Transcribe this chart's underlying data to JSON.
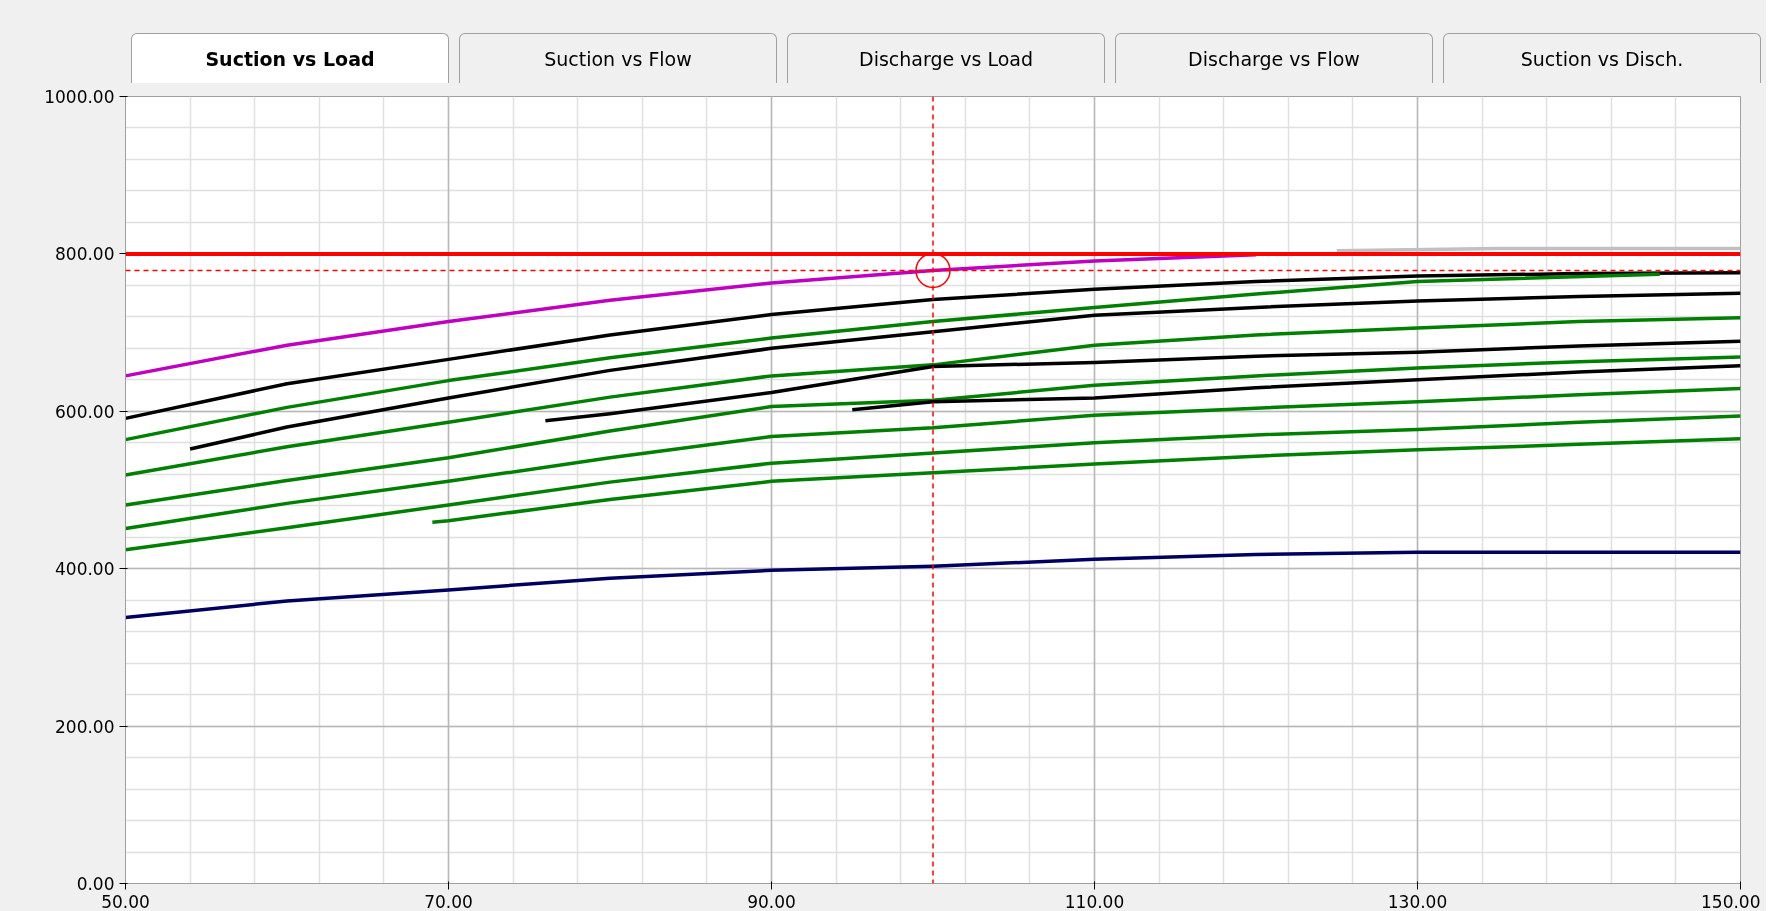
{
  "chart_data": {
    "type": "line",
    "annotations": [
      "Suction vs Load",
      "Suction vs Flow",
      "Discharge vs Load",
      "Discharge vs Flow",
      "Suction vs Disch."
    ],
    "xlim": [
      50,
      150
    ],
    "ylim": [
      0,
      1000
    ],
    "xticks": [
      {
        "value": 50,
        "label": "50.00"
      },
      {
        "value": 54,
        "label": null
      },
      {
        "value": 58,
        "label": null
      },
      {
        "value": 62,
        "label": null
      },
      {
        "value": 66,
        "label": null
      },
      {
        "value": 70,
        "label": "70.00"
      },
      {
        "value": 74,
        "label": null
      },
      {
        "value": 78,
        "label": null
      },
      {
        "value": 82,
        "label": null
      },
      {
        "value": 86,
        "label": null
      },
      {
        "value": 90,
        "label": "90.00"
      },
      {
        "value": 94,
        "label": null
      },
      {
        "value": 98,
        "label": null
      },
      {
        "value": 102,
        "label": null
      },
      {
        "value": 106,
        "label": null
      },
      {
        "value": 110,
        "label": "110.00"
      },
      {
        "value": 114,
        "label": null
      },
      {
        "value": 118,
        "label": null
      },
      {
        "value": 122,
        "label": null
      },
      {
        "value": 126,
        "label": null
      },
      {
        "value": 130,
        "label": "130.00"
      },
      {
        "value": 134,
        "label": null
      },
      {
        "value": 138,
        "label": null
      },
      {
        "value": 142,
        "label": null
      },
      {
        "value": 146,
        "label": null
      },
      {
        "value": 150,
        "label": "150.00"
      }
    ],
    "yticks": [
      {
        "value": 0,
        "label": "0.00"
      },
      {
        "value": 40,
        "label": null
      },
      {
        "value": 80,
        "label": null
      },
      {
        "value": 120,
        "label": null
      },
      {
        "value": 160,
        "label": null
      },
      {
        "value": 200,
        "label": "200.00"
      },
      {
        "value": 240,
        "label": null
      },
      {
        "value": 280,
        "label": null
      },
      {
        "value": 320,
        "label": null
      },
      {
        "value": 360,
        "label": null
      },
      {
        "value": 400,
        "label": "400.00"
      },
      {
        "value": 440,
        "label": null
      },
      {
        "value": 480,
        "label": null
      },
      {
        "value": 520,
        "label": null
      },
      {
        "value": 560,
        "label": null
      },
      {
        "value": 600,
        "label": "600.00"
      },
      {
        "value": 640,
        "label": null
      },
      {
        "value": 680,
        "label": null
      },
      {
        "value": 720,
        "label": null
      },
      {
        "value": 760,
        "label": null
      },
      {
        "value": 800,
        "label": "800.00"
      },
      {
        "value": 840,
        "label": null
      },
      {
        "value": 880,
        "label": null
      },
      {
        "value": 920,
        "label": null
      },
      {
        "value": 960,
        "label": null
      },
      {
        "value": 1000,
        "label": "1000.00"
      }
    ],
    "grid": true,
    "series": [
      {
        "color": "#c0c0c0",
        "x": [
          125,
          135,
          150
        ],
        "values": [
          804,
          807,
          807
        ]
      },
      {
        "color": "#c000c0",
        "x": [
          50,
          60,
          70,
          80,
          90,
          100,
          110,
          120
        ],
        "values": [
          645,
          684,
          714,
          741,
          763,
          779,
          791,
          799
        ]
      },
      {
        "color": "#000000",
        "x": [
          50,
          60,
          70,
          80,
          90,
          100,
          110,
          120,
          130,
          140,
          150
        ],
        "values": [
          591,
          635,
          666,
          697,
          723,
          742,
          755,
          765,
          772,
          775,
          776
        ]
      },
      {
        "color": "#008000",
        "x": [
          50,
          60,
          70,
          80,
          90,
          100,
          110,
          120,
          130,
          145
        ],
        "values": [
          564,
          605,
          639,
          668,
          693,
          714,
          732,
          749,
          765,
          774
        ]
      },
      {
        "color": "#000000",
        "x": [
          54,
          60,
          70,
          80,
          90,
          100,
          110,
          120,
          130,
          140,
          150
        ],
        "values": [
          552,
          580,
          617,
          652,
          680,
          701,
          722,
          732,
          740,
          746,
          750
        ]
      },
      {
        "color": "#008000",
        "x": [
          50,
          60,
          70,
          80,
          90,
          100,
          110,
          120,
          130,
          140,
          150
        ],
        "values": [
          519,
          555,
          586,
          618,
          645,
          659,
          684,
          697,
          706,
          714,
          719
        ]
      },
      {
        "color": "#000000",
        "x": [
          76,
          80,
          90,
          100,
          110,
          120,
          130,
          140,
          150
        ],
        "values": [
          588,
          597,
          624,
          657,
          662,
          670,
          675,
          683,
          689
        ]
      },
      {
        "color": "#008000",
        "x": [
          50,
          60,
          70,
          80,
          90,
          100,
          110,
          120,
          130,
          140,
          150
        ],
        "values": [
          481,
          512,
          541,
          575,
          606,
          614,
          633,
          645,
          655,
          663,
          669
        ]
      },
      {
        "color": "#000000",
        "x": [
          95,
          100,
          110,
          120,
          130,
          140,
          150
        ],
        "values": [
          602,
          612,
          617,
          630,
          640,
          650,
          658
        ]
      },
      {
        "color": "#008000",
        "x": [
          50,
          60,
          70,
          80,
          90,
          100,
          110,
          120,
          130,
          140,
          150
        ],
        "values": [
          451,
          483,
          511,
          541,
          568,
          579,
          595,
          604,
          612,
          621,
          629
        ]
      },
      {
        "color": "#008000",
        "x": [
          50,
          60,
          70,
          80,
          90,
          100,
          110,
          120,
          130,
          140,
          150
        ],
        "values": [
          424,
          452,
          481,
          510,
          534,
          547,
          560,
          570,
          577,
          586,
          594
        ]
      },
      {
        "color": "#008000",
        "x": [
          69,
          70,
          80,
          90,
          100,
          110,
          120,
          130,
          140,
          150
        ],
        "values": [
          459,
          461,
          488,
          511,
          522,
          533,
          543,
          551,
          558,
          565
        ]
      },
      {
        "color": "#000060",
        "x": [
          50,
          60,
          70,
          80,
          90,
          100,
          110,
          120,
          130,
          140,
          150
        ],
        "values": [
          338,
          359,
          373,
          388,
          398,
          403,
          412,
          418,
          421,
          421,
          421
        ]
      },
      {
        "type": "scatter",
        "marker": "circle",
        "color": "#ff0000",
        "x": [
          100
        ],
        "values": [
          779
        ]
      }
    ],
    "ref_lines": [
      {
        "axis": "y",
        "value": 800,
        "color": "#ff0000",
        "line_style": "solid"
      },
      {
        "axis": "y",
        "value": 779,
        "color": "#ff0000",
        "line_style": "dashed"
      },
      {
        "axis": "x",
        "value": 100,
        "color": "#ff0000",
        "line_style": "dashed"
      }
    ]
  }
}
